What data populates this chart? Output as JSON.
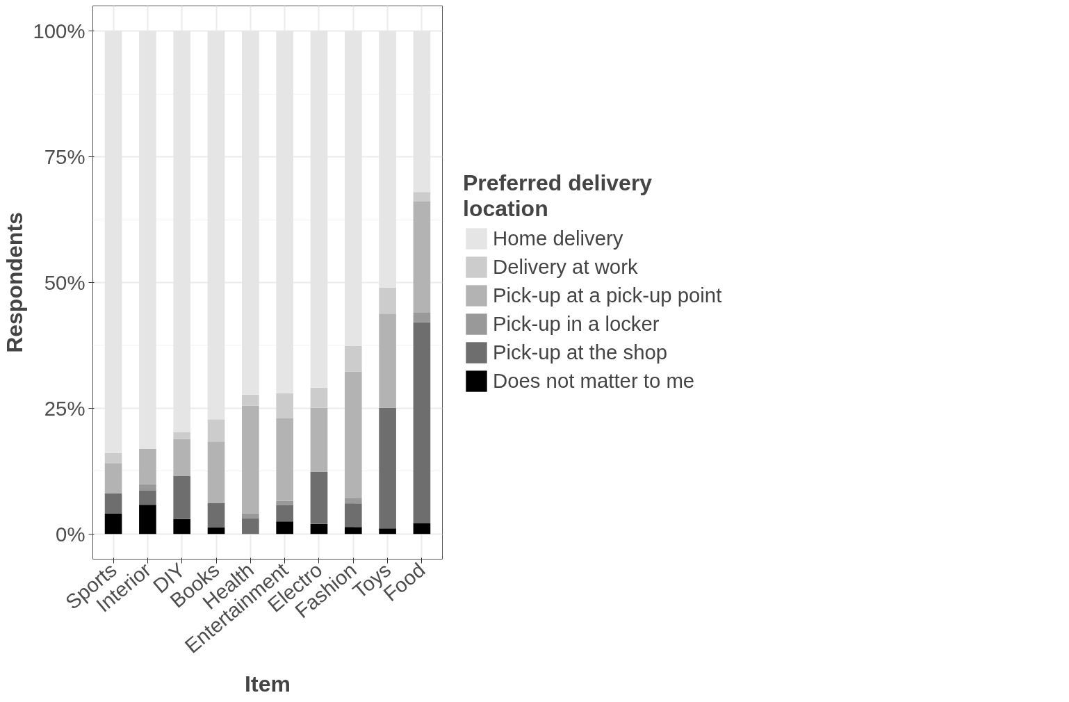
{
  "chart_data": {
    "type": "bar",
    "stacked": true,
    "xlabel": "Item",
    "ylabel": "Respondents",
    "legend_title": "Preferred delivery location",
    "legend": "right",
    "grid": true,
    "categories": [
      "Sports",
      "Interior",
      "DIY",
      "Books",
      "Health",
      "Entertainment",
      "Electro",
      "Fashion",
      "Toys",
      "Food"
    ],
    "ylim": [
      -5,
      105
    ],
    "yticks": [
      {
        "value": 0,
        "label": "0%"
      },
      {
        "value": 25,
        "label": "25%"
      },
      {
        "value": 50,
        "label": "50%"
      },
      {
        "value": 75,
        "label": "75%"
      },
      {
        "value": 100,
        "label": "100%"
      }
    ],
    "series": [
      {
        "name": "Does not matter to me",
        "color": "#000000",
        "values": [
          4.1,
          5.8,
          3.0,
          1.3,
          0,
          2.5,
          2.0,
          1.4,
          1.1,
          2.1
        ]
      },
      {
        "name": "Pick-up at the shop",
        "color": "#6e6e6e",
        "values": [
          4.0,
          2.8,
          8.6,
          4.9,
          3.1,
          3.3,
          10.4,
          4.7,
          24.0,
          40.0
        ]
      },
      {
        "name": "Pick-up in a locker",
        "color": "#999999",
        "values": [
          0,
          1.3,
          0,
          0,
          1.0,
          0.8,
          0,
          1.1,
          0,
          2.0
        ]
      },
      {
        "name": "Pick-up at a pick-up point",
        "color": "#b3b3b3",
        "values": [
          6.0,
          7.0,
          7.3,
          12.2,
          21.4,
          16.4,
          12.7,
          25.1,
          18.7,
          22.0
        ]
      },
      {
        "name": "Delivery at work",
        "color": "#cccccc",
        "values": [
          2.0,
          0,
          1.4,
          4.4,
          2.2,
          5.0,
          4.0,
          5.1,
          5.2,
          1.9
        ]
      },
      {
        "name": "Home delivery",
        "color": "#e5e5e5",
        "values": [
          83.9,
          83.1,
          79.7,
          77.2,
          72.3,
          72.0,
          70.9,
          62.6,
          51.0,
          32.0
        ]
      }
    ]
  }
}
